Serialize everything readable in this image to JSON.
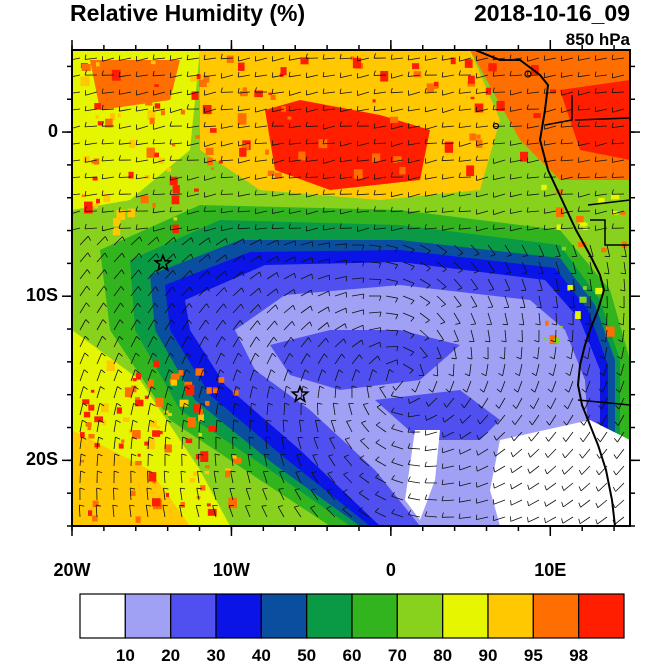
{
  "header": {
    "title": "Relative Humidity (%)",
    "datetime": "2018-10-16_09",
    "level": "850 hPa"
  },
  "map": {
    "lon_range": [
      -20,
      15
    ],
    "lat_range": [
      -24,
      5
    ],
    "lon_ticks": [
      {
        "value": -20,
        "label": "20W"
      },
      {
        "value": -10,
        "label": "10W"
      },
      {
        "value": 0,
        "label": "0"
      },
      {
        "value": 10,
        "label": "10E"
      }
    ],
    "lat_ticks": [
      {
        "value": 0,
        "label": "0"
      },
      {
        "value": -10,
        "label": "10S"
      },
      {
        "value": -20,
        "label": "20S"
      }
    ],
    "markers": [
      {
        "name": "star-marker-north",
        "lon": -14.3,
        "lat": -8.0
      },
      {
        "name": "star-marker-south",
        "lon": -5.7,
        "lat": -16.0
      }
    ]
  },
  "colorbar": {
    "colors": [
      "#ffffff",
      "#a0a0f5",
      "#5050f0",
      "#0a14e6",
      "#0a4ea0",
      "#0a9a46",
      "#32b41e",
      "#88d21e",
      "#e6f500",
      "#ffc800",
      "#ff6e00",
      "#ff1e00"
    ],
    "labels": [
      "10",
      "20",
      "30",
      "40",
      "50",
      "60",
      "70",
      "80",
      "90",
      "95",
      "98"
    ]
  }
}
